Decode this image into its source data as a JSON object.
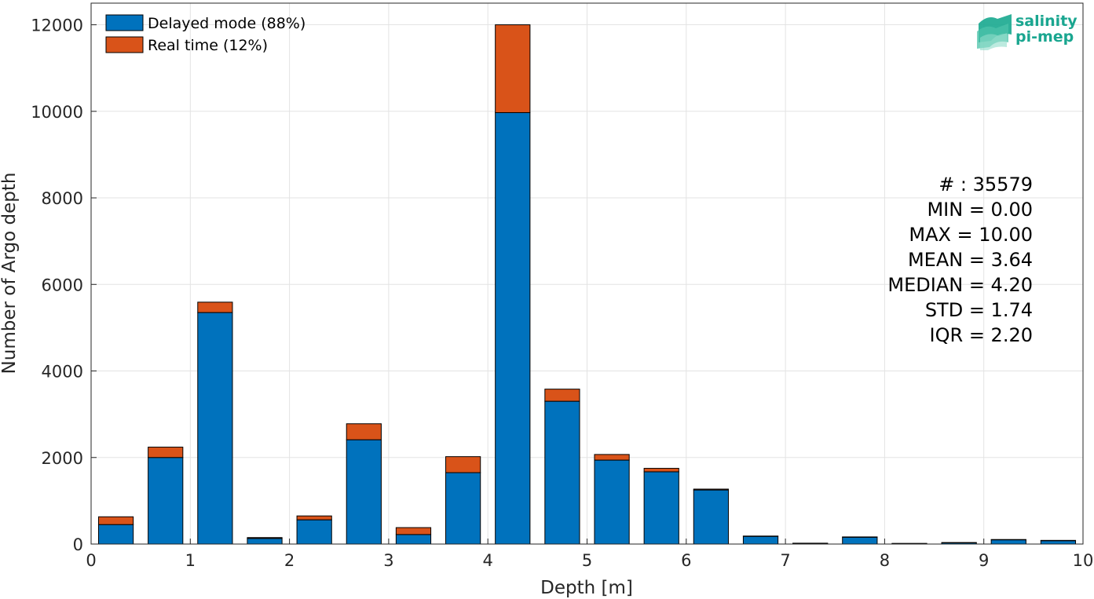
{
  "chart_data": {
    "type": "bar",
    "stacked": true,
    "xlabel": "Depth [m]",
    "ylabel": "Number of Argo depth",
    "xlim": [
      0,
      10
    ],
    "ylim": [
      0,
      12500
    ],
    "x_ticks": [
      "0",
      "1",
      "2",
      "3",
      "4",
      "5",
      "6",
      "7",
      "8",
      "9",
      "10"
    ],
    "y_ticks": [
      "0",
      "2000",
      "4000",
      "6000",
      "8000",
      "10000",
      "12000"
    ],
    "grid": true,
    "legend_position": "top-left",
    "bin_width": 0.5,
    "bins": [
      0.25,
      0.75,
      1.25,
      1.75,
      2.25,
      2.75,
      3.25,
      3.75,
      4.25,
      4.75,
      5.25,
      5.75,
      6.25,
      6.75,
      7.25,
      7.75,
      8.25,
      8.75,
      9.25,
      9.75
    ],
    "series": [
      {
        "name": "Delayed mode (88%)",
        "color": "#0072bd",
        "values": [
          450,
          2000,
          5350,
          130,
          560,
          2410,
          220,
          1650,
          9970,
          3300,
          1940,
          1670,
          1250,
          180,
          15,
          160,
          10,
          30,
          100,
          80
        ]
      },
      {
        "name": "Real time (12%)",
        "color": "#d95319",
        "values": [
          180,
          240,
          240,
          20,
          90,
          370,
          160,
          370,
          2030,
          280,
          130,
          80,
          20,
          5,
          5,
          5,
          5,
          5,
          5,
          5
        ]
      }
    ],
    "stats": [
      "# : 35579",
      "MIN = 0.00",
      "MAX =  10.00",
      "MEAN = 3.64",
      "MEDIAN = 4.20",
      "STD = 1.74",
      "IQR = 2.20"
    ]
  },
  "logo": {
    "line1": "salinity",
    "line2": "pi-mep",
    "color": "#1aa690"
  }
}
